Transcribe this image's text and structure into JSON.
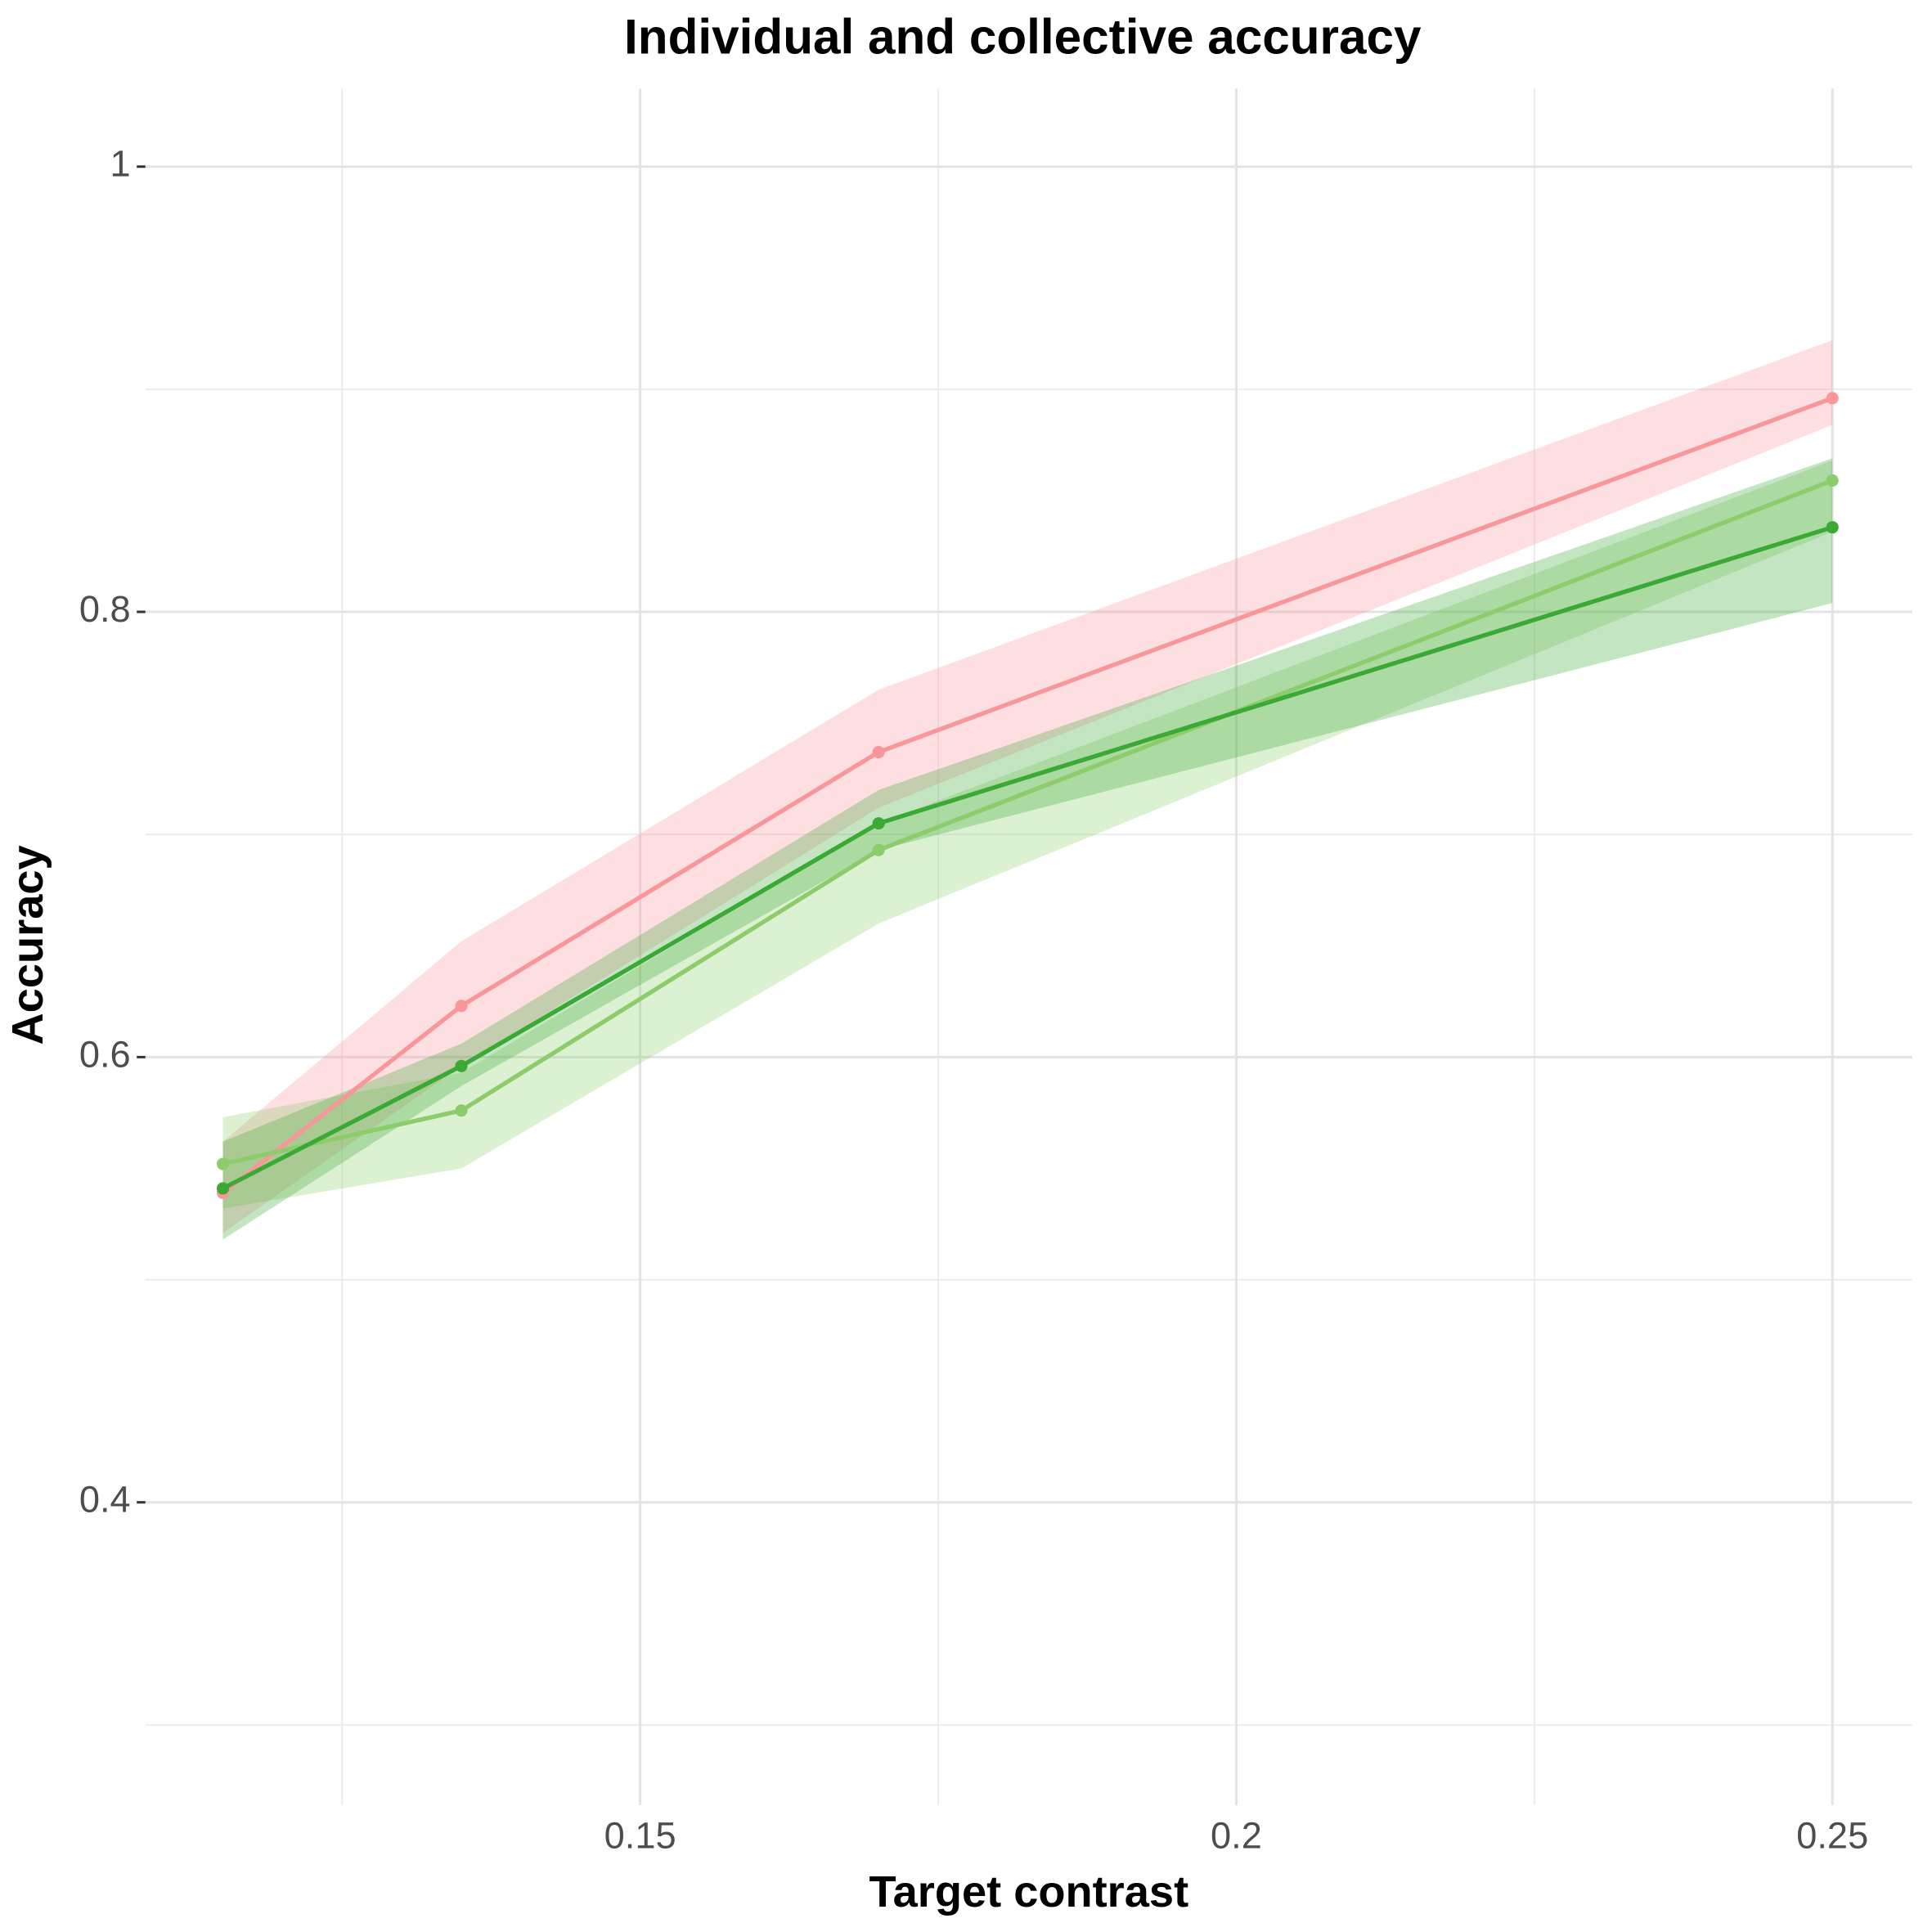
{
  "chart_data": {
    "type": "line",
    "title": "Individual and collective accuracy",
    "x_label": "Target contrast",
    "y_label": "Accuracy",
    "x": [
      0.115,
      0.135,
      0.17,
      0.25
    ],
    "series": [
      {
        "color": "#f8969a",
        "values": [
          0.539,
          0.623,
          0.737,
          0.896
        ],
        "lower": [
          0.521,
          0.596,
          0.712,
          0.884
        ],
        "upper": [
          0.562,
          0.652,
          0.765,
          0.922
        ]
      },
      {
        "color": "#8ccc6a",
        "values": [
          0.552,
          0.576,
          0.693,
          0.859
        ],
        "lower": [
          0.532,
          0.55,
          0.66,
          0.836
        ],
        "upper": [
          0.573,
          0.593,
          0.705,
          0.868
        ]
      },
      {
        "color": "#3aaa35",
        "values": [
          0.541,
          0.596,
          0.705,
          0.838
        ],
        "lower": [
          0.518,
          0.587,
          0.693,
          0.804
        ],
        "upper": [
          0.562,
          0.606,
          0.72,
          0.869
        ]
      }
    ],
    "xlim": [
      0.1085,
      0.2567
    ],
    "ylim": [
      0.264,
      1.035
    ],
    "xticks": [
      0.15,
      0.2,
      0.25
    ],
    "yticks": [
      0.4,
      0.6,
      0.8,
      1.0
    ],
    "minor_xticks": [
      0.125,
      0.175,
      0.225
    ],
    "minor_yticks": [
      0.3,
      0.5,
      0.7,
      0.9
    ],
    "grid": true
  }
}
